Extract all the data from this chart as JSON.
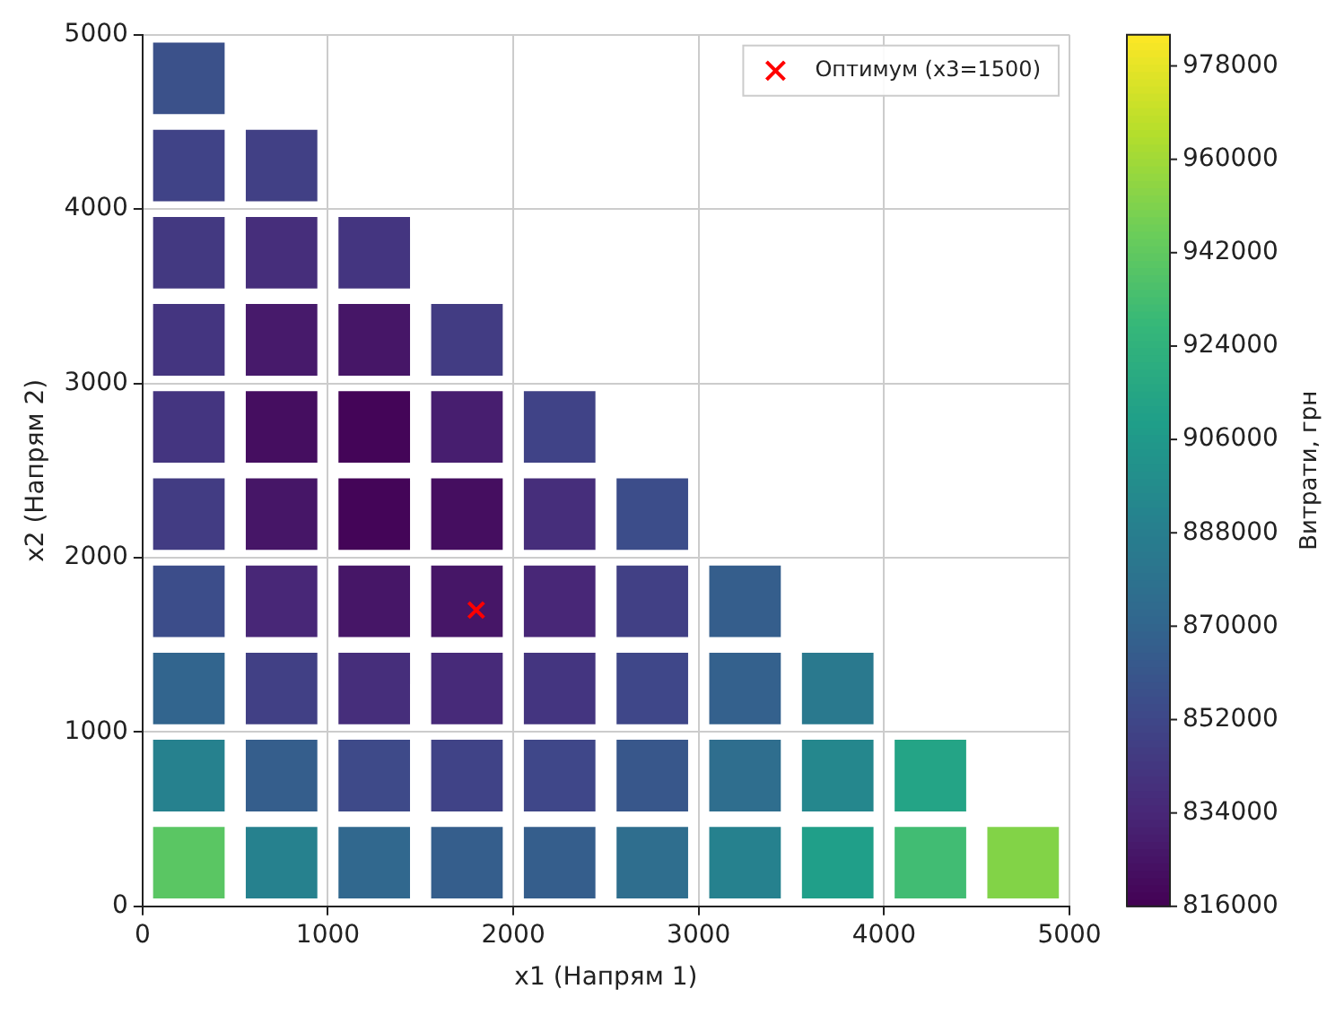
{
  "chart_data": {
    "type": "scatter",
    "xlabel": "x1 (Напрям 1)",
    "ylabel": "x2 (Напрям 2)",
    "clabel": "Витрати, грн",
    "clim": [
      816000,
      984000
    ],
    "cticks": [
      816000,
      834000,
      852000,
      870000,
      888000,
      906000,
      924000,
      942000,
      960000,
      978000
    ],
    "xlim": [
      0,
      5000
    ],
    "xticks": [
      0,
      1000,
      2000,
      3000,
      4000,
      5000
    ],
    "ylim": [
      0,
      5000
    ],
    "yticks": [
      0,
      1000,
      2000,
      3000,
      4000,
      5000
    ],
    "grid": true,
    "legend": "top right",
    "series": [
      {
        "type": "scatter",
        "marker": "square",
        "x": [
          250,
          750,
          1250,
          1750,
          2250,
          2750,
          3250,
          3750,
          4250,
          4750,
          250,
          750,
          1250,
          1750,
          2250,
          2750,
          3250,
          3750,
          4250,
          250,
          750,
          1250,
          1750,
          2250,
          2750,
          3250,
          3750,
          250,
          750,
          1250,
          1750,
          2250,
          2750,
          3250,
          250,
          750,
          1250,
          1750,
          2250,
          2750,
          250,
          750,
          1250,
          1750,
          2250,
          250,
          750,
          1250,
          1750,
          250,
          750,
          1250,
          250,
          750,
          250
        ],
        "values": [
          250,
          250,
          250,
          250,
          250,
          250,
          250,
          250,
          250,
          250,
          750,
          750,
          750,
          750,
          750,
          750,
          750,
          750,
          750,
          1250,
          1250,
          1250,
          1250,
          1250,
          1250,
          1250,
          1250,
          1750,
          1750,
          1750,
          1750,
          1750,
          1750,
          1750,
          2250,
          2250,
          2250,
          2250,
          2250,
          2250,
          2750,
          2750,
          2750,
          2750,
          2750,
          3250,
          3250,
          3250,
          3250,
          3750,
          3750,
          3750,
          4250,
          4250,
          4750
        ],
        "colors": [
          "#5ac663",
          "#26818e",
          "#31688e",
          "#355e8c",
          "#355e8c",
          "#2f6e8e",
          "#26818e",
          "#209f89",
          "#41bc73",
          "#82d347",
          "#26818e",
          "#355e8c",
          "#3e4a89",
          "#404387",
          "#3f4789",
          "#38578b",
          "#2f6e8e",
          "#25878d",
          "#24a486",
          "#32658e",
          "#414085",
          "#462e7b",
          "#472a79",
          "#443580",
          "#3f4789",
          "#34618d",
          "#2a798e",
          "#3c4d8a",
          "#482777",
          "#461667",
          "#461667",
          "#482777",
          "#414085",
          "#355e8c",
          "#423c83",
          "#461667",
          "#440558",
          "#450e60",
          "#462e7b",
          "#3c4d8a",
          "#443580",
          "#450e60",
          "#440558",
          "#471e6f",
          "#404387",
          "#443580",
          "#471a6b",
          "#461667",
          "#423c83",
          "#433981",
          "#462e7b",
          "#443580",
          "#404387",
          "#414085",
          "#3b518a"
        ],
        "cvalues": [
          940000,
          890000,
          872000,
          866000,
          866000,
          876000,
          890000,
          910000,
          932000,
          952000,
          890000,
          866000,
          854000,
          850000,
          852000,
          862000,
          876000,
          894000,
          914000,
          870000,
          848000,
          838000,
          836000,
          842000,
          852000,
          868000,
          884000,
          856000,
          834000,
          826000,
          826000,
          834000,
          848000,
          866000,
          846000,
          826000,
          818000,
          822000,
          838000,
          856000,
          842000,
          822000,
          818000,
          830000,
          850000,
          842000,
          828000,
          826000,
          846000,
          844000,
          838000,
          842000,
          850000,
          848000,
          858000
        ]
      },
      {
        "name": "Оптимум (x3=1500)",
        "type": "scatter",
        "color": "#ff0000",
        "marker": "cross",
        "x": [
          1800
        ],
        "values": [
          1700
        ]
      }
    ]
  }
}
